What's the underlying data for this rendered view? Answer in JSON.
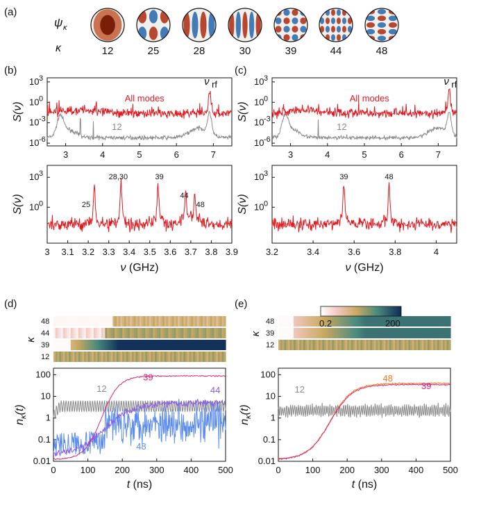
{
  "panel_labels": [
    "(a)",
    "(b)",
    "(c)",
    "(d)",
    "(e)"
  ],
  "modes": {
    "row_psi_label": "ψ",
    "row_psi_sub": "κ",
    "row_kappa_label": "κ",
    "kappas": [
      "12",
      "25",
      "28",
      "30",
      "39",
      "44",
      "48"
    ]
  },
  "colors": {
    "all_modes": "#e0191e",
    "mode12": "#8a8a8a",
    "mode39": "#d8237a",
    "mode44": "#8a5ae8",
    "mode48_d": "#5b8cf0",
    "mode48_e": "#f07a1a"
  },
  "colorbar": {
    "low": "0.2",
    "high": "200"
  },
  "chart_data": [
    {
      "panel": "(b) top",
      "type": "line",
      "xlim": [
        2.5,
        7.5
      ],
      "ylim": [
        "1e-6",
        "1e4"
      ],
      "yscale": "log",
      "xticks": [
        "3",
        "4",
        "5",
        "6",
        "7"
      ],
      "yticks": [
        "10",
        "10",
        "10",
        "10"
      ],
      "ytick_exp": [
        "3",
        "0",
        "-3",
        "-6"
      ],
      "ylabel_main": "S",
      "ylabel_arg": "(ν)",
      "annotations": [
        "All modes",
        "12",
        "ν",
        "rf"
      ],
      "series": [
        {
          "name": "All modes",
          "level": "1e-2",
          "resonance": 6.9
        },
        {
          "name": "12",
          "level": "1e-5",
          "peaks": [
            2.85,
            3.4,
            3.75,
            6.9
          ]
        }
      ]
    },
    {
      "panel": "(c) top",
      "type": "line",
      "xlim": [
        2.5,
        7.5
      ],
      "yscale": "log",
      "xticks": [
        "3",
        "4",
        "5",
        "6",
        "7"
      ],
      "yticks": [
        "10",
        "10",
        "10",
        "10"
      ],
      "ytick_exp": [
        "3",
        "0",
        "-3",
        "-6"
      ],
      "ylabel_main": "S",
      "ylabel_arg": "(ν)",
      "annotations": [
        "All modes",
        "12",
        "ν",
        "rf"
      ],
      "series": [
        {
          "name": "All modes",
          "level": "1e-2",
          "resonance": 7.3
        },
        {
          "name": "12",
          "level": "1e-5",
          "peaks": [
            2.85,
            3.75,
            7.3
          ]
        }
      ]
    },
    {
      "panel": "(b) bottom",
      "type": "line",
      "xlim": [
        3.0,
        3.9
      ],
      "xticks": [
        "3",
        "3.1",
        "3.2",
        "3.3",
        "3.4",
        "3.5",
        "3.6",
        "3.7",
        "3.8",
        "3.9"
      ],
      "yticks": [
        "10",
        "10"
      ],
      "ytick_exp": [
        "3",
        "0"
      ],
      "xlabel_main": "ν",
      "xlabel_unit": "(GHz)",
      "ylabel_main": "S",
      "ylabel_arg": "(ν)",
      "peak_labels": [
        "25",
        "28,30",
        "39",
        "44",
        "48"
      ],
      "peaks_x": [
        3.23,
        3.36,
        3.54,
        3.675,
        3.72
      ]
    },
    {
      "panel": "(c) bottom",
      "type": "line",
      "xlim": [
        3.2,
        4.1
      ],
      "xticks": [
        "3.2",
        "3.4",
        "3.6",
        "3.8",
        "4"
      ],
      "yticks": [
        "10",
        "10"
      ],
      "ytick_exp": [
        "3",
        "0"
      ],
      "xlabel_main": "ν",
      "xlabel_unit": "(GHz)",
      "ylabel_main": "S",
      "ylabel_arg": "(ν)",
      "peak_labels": [
        "39",
        "48"
      ],
      "peaks_x": [
        3.55,
        3.77
      ]
    },
    {
      "panel": "(d)",
      "type": "line",
      "xlim": [
        0,
        500
      ],
      "ylim": [
        0.01,
        200
      ],
      "yscale": "log",
      "xticks": [
        "0",
        "100",
        "200",
        "300",
        "400",
        "500"
      ],
      "yticks": [
        "100",
        "10",
        "1",
        "0.1",
        "0.01"
      ],
      "xlabel_main": "t",
      "xlabel_unit": "(ns)",
      "ylabel_main": "n",
      "ylabel_sub": "κ",
      "ylabel_arg": "(t)",
      "heatmap_rows": [
        "48",
        "44",
        "39",
        "12"
      ],
      "heatmap_axis": "κ",
      "series": [
        {
          "name": "12",
          "mean": 3.5
        },
        {
          "name": "39",
          "plateau": 90
        },
        {
          "name": "44",
          "plateau": 5
        },
        {
          "name": "48",
          "mean": 0.4
        }
      ]
    },
    {
      "panel": "(e)",
      "type": "line",
      "xlim": [
        0,
        500
      ],
      "ylim": [
        0.01,
        200
      ],
      "yscale": "log",
      "xticks": [
        "0",
        "100",
        "200",
        "300",
        "400",
        "500"
      ],
      "yticks": [
        "100",
        "10",
        "1",
        "0.1",
        "0.01"
      ],
      "xlabel_main": "t",
      "xlabel_unit": "(ns)",
      "ylabel_main": "n",
      "ylabel_sub": "κ",
      "ylabel_arg": "(t)",
      "heatmap_rows": [
        "48",
        "39",
        "12"
      ],
      "heatmap_axis": "κ",
      "series": [
        {
          "name": "12",
          "mean": 2
        },
        {
          "name": "48",
          "plateau": 40
        },
        {
          "name": "39",
          "plateau": 35
        }
      ]
    }
  ]
}
